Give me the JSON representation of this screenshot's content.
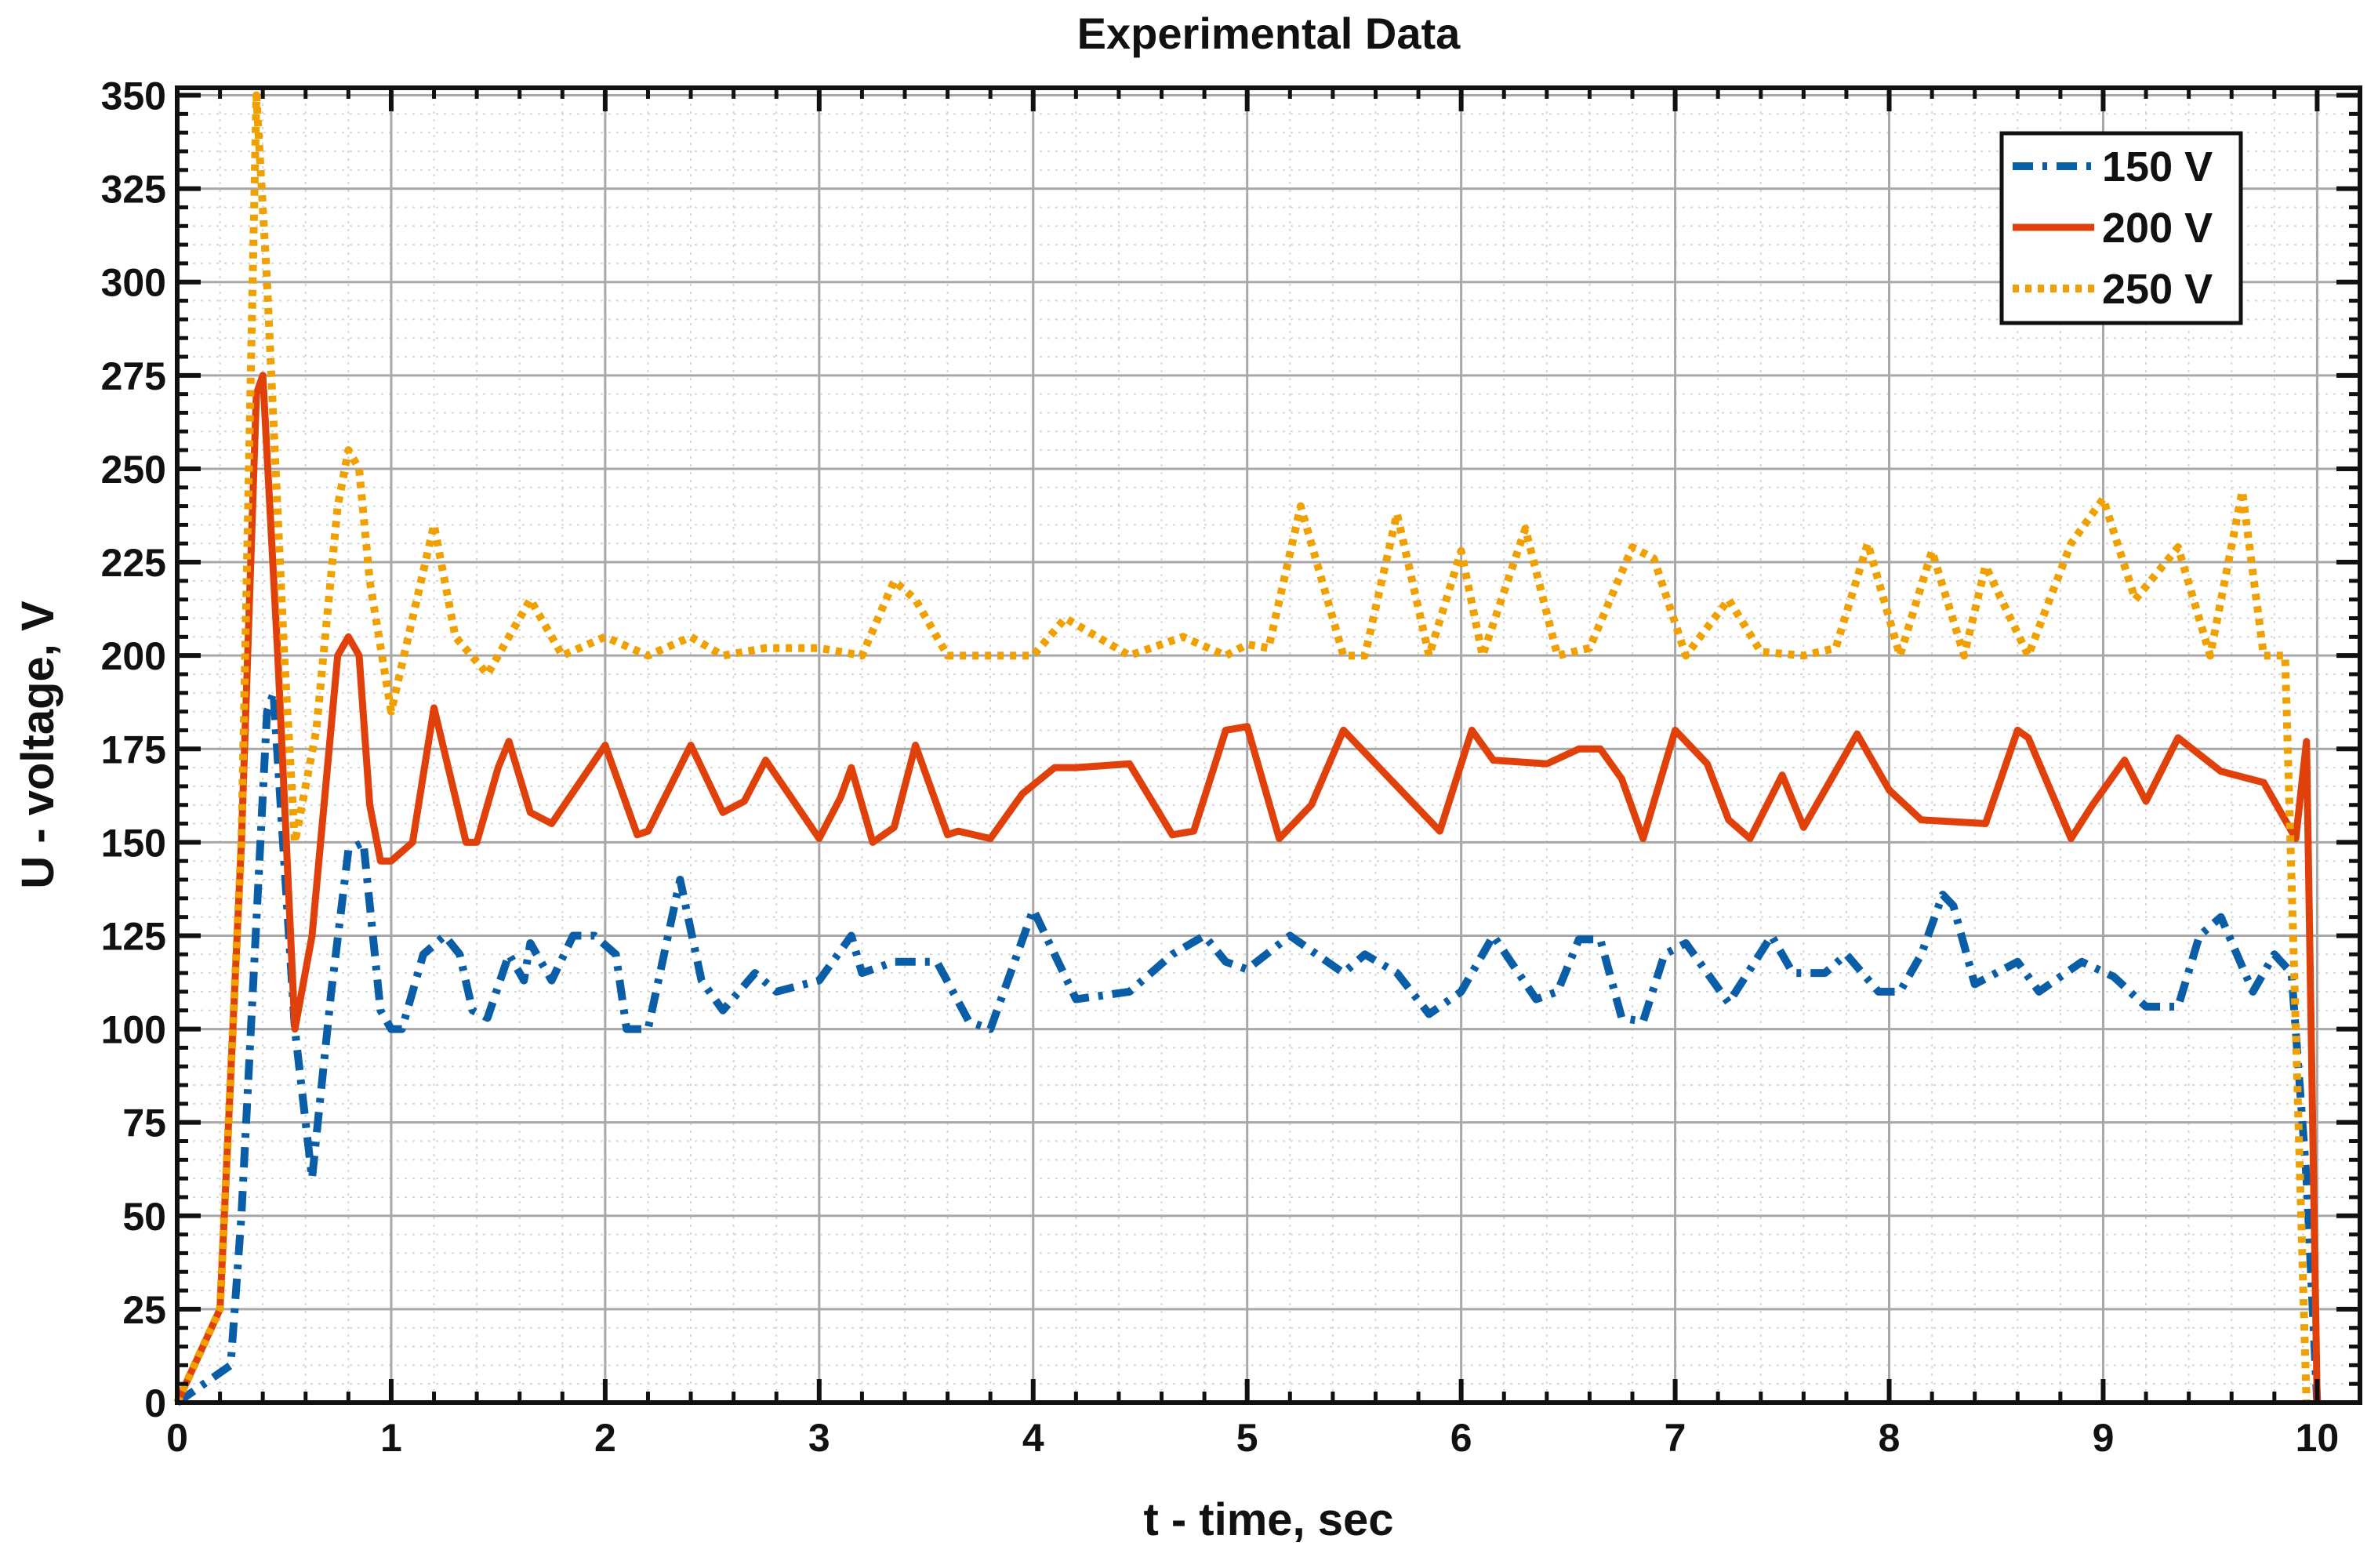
{
  "chart_data": {
    "type": "line",
    "title": "Experimental Data",
    "xlabel": "t - time, sec",
    "ylabel": "U - voltage, V",
    "xlim": [
      0,
      10.2
    ],
    "ylim": [
      0,
      352
    ],
    "xticks": [
      0,
      1,
      2,
      3,
      4,
      5,
      6,
      7,
      8,
      9,
      10
    ],
    "xtick_labels": [
      "0",
      "1",
      "2",
      "3",
      "4",
      "5",
      "6",
      "7",
      "8",
      "9",
      "10"
    ],
    "yticks": [
      0,
      25,
      50,
      75,
      100,
      125,
      150,
      175,
      200,
      225,
      250,
      275,
      300,
      325,
      350
    ],
    "ytick_labels": [
      "0",
      "25",
      "50",
      "75",
      "100",
      "125",
      "150",
      "175",
      "200",
      "225",
      "250",
      "275",
      "300",
      "325",
      "350"
    ],
    "grid": true,
    "minor_grid": true,
    "legend_position": "top-right",
    "series": [
      {
        "name": "150 V",
        "color": "#0a5ea8",
        "style": "dashdot",
        "x": [
          0,
          0.25,
          0.3,
          0.42,
          0.45,
          0.55,
          0.63,
          0.72,
          0.8,
          0.87,
          0.95,
          1.0,
          1.05,
          1.15,
          1.25,
          1.32,
          1.38,
          1.45,
          1.55,
          1.62,
          1.65,
          1.75,
          1.85,
          1.95,
          2.05,
          2.1,
          2.2,
          2.35,
          2.45,
          2.55,
          2.7,
          2.8,
          3.0,
          3.15,
          3.2,
          3.35,
          3.55,
          3.7,
          3.8,
          4.0,
          4.1,
          4.2,
          4.45,
          4.65,
          4.8,
          4.9,
          5.0,
          5.2,
          5.45,
          5.55,
          5.7,
          5.85,
          6.0,
          6.15,
          6.35,
          6.45,
          6.55,
          6.65,
          6.75,
          6.85,
          6.95,
          7.05,
          7.25,
          7.45,
          7.55,
          7.7,
          7.8,
          7.95,
          8.05,
          8.15,
          8.25,
          8.3,
          8.4,
          8.6,
          8.7,
          8.9,
          9.05,
          9.2,
          9.35,
          9.45,
          9.55,
          9.7,
          9.8,
          9.88,
          9.95,
          10.0
        ],
        "y": [
          0,
          10,
          50,
          185,
          190,
          100,
          60,
          110,
          148,
          150,
          105,
          100,
          100,
          120,
          125,
          120,
          105,
          103,
          120,
          113,
          123,
          113,
          125,
          125,
          120,
          100,
          100,
          140,
          113,
          105,
          115,
          110,
          113,
          125,
          115,
          118,
          118,
          102,
          100,
          132,
          120,
          108,
          110,
          120,
          125,
          118,
          116,
          125,
          115,
          120,
          115,
          104,
          110,
          125,
          108,
          110,
          124,
          124,
          103,
          102,
          120,
          123,
          107,
          125,
          115,
          115,
          120,
          110,
          110,
          120,
          136,
          133,
          112,
          118,
          110,
          118,
          114,
          106,
          106,
          125,
          130,
          110,
          120,
          115,
          60,
          0
        ]
      },
      {
        "name": "200 V",
        "color": "#e0400a",
        "style": "solid",
        "x": [
          0,
          0.2,
          0.3,
          0.37,
          0.4,
          0.47,
          0.55,
          0.63,
          0.75,
          0.8,
          0.85,
          0.9,
          0.95,
          1.0,
          1.1,
          1.2,
          1.35,
          1.4,
          1.5,
          1.55,
          1.65,
          1.75,
          2.0,
          2.15,
          2.2,
          2.4,
          2.55,
          2.65,
          2.75,
          3.0,
          3.1,
          3.15,
          3.25,
          3.35,
          3.45,
          3.6,
          3.65,
          3.8,
          3.95,
          4.1,
          4.2,
          4.45,
          4.65,
          4.75,
          4.9,
          5.0,
          5.15,
          5.3,
          5.45,
          5.7,
          5.9,
          6.05,
          6.15,
          6.4,
          6.55,
          6.65,
          6.75,
          6.85,
          7.0,
          7.15,
          7.25,
          7.35,
          7.5,
          7.6,
          7.85,
          8.0,
          8.15,
          8.45,
          8.6,
          8.65,
          8.85,
          8.95,
          9.1,
          9.2,
          9.35,
          9.55,
          9.75,
          9.9,
          9.95,
          10.0
        ],
        "y": [
          0,
          25,
          150,
          270,
          275,
          200,
          100,
          125,
          200,
          205,
          200,
          160,
          145,
          145,
          150,
          186,
          150,
          150,
          170,
          177,
          158,
          155,
          176,
          152,
          153,
          176,
          158,
          161,
          172,
          151,
          162,
          170,
          150,
          154,
          176,
          152,
          153,
          151,
          163,
          170,
          170,
          171,
          152,
          153,
          180,
          181,
          151,
          160,
          180,
          165,
          153,
          180,
          172,
          171,
          175,
          175,
          167,
          151,
          180,
          171,
          156,
          151,
          168,
          154,
          179,
          164,
          156,
          155,
          180,
          178,
          151,
          160,
          172,
          161,
          178,
          169,
          166,
          151,
          177,
          0
        ]
      },
      {
        "name": "250 V",
        "color": "#f0a000",
        "style": "dotted",
        "x": [
          0,
          0.2,
          0.3,
          0.37,
          0.42,
          0.5,
          0.55,
          0.65,
          0.75,
          0.8,
          0.85,
          0.9,
          1.0,
          1.1,
          1.2,
          1.3,
          1.45,
          1.55,
          1.65,
          1.8,
          2.0,
          2.2,
          2.4,
          2.55,
          2.75,
          3.0,
          3.2,
          3.35,
          3.45,
          3.6,
          4.0,
          4.15,
          4.3,
          4.45,
          4.7,
          4.9,
          5.0,
          5.1,
          5.25,
          5.35,
          5.45,
          5.55,
          5.7,
          5.85,
          6.0,
          6.1,
          6.3,
          6.45,
          6.6,
          6.8,
          6.9,
          7.05,
          7.25,
          7.4,
          7.6,
          7.75,
          7.9,
          8.05,
          8.2,
          8.35,
          8.45,
          8.65,
          8.85,
          9.0,
          9.15,
          9.35,
          9.5,
          9.65,
          9.75,
          9.85,
          9.95
        ],
        "y": [
          0,
          25,
          150,
          350,
          300,
          200,
          150,
          180,
          240,
          255,
          250,
          220,
          185,
          210,
          235,
          205,
          195,
          205,
          215,
          200,
          205,
          200,
          205,
          200,
          202,
          202,
          200,
          220,
          215,
          200,
          200,
          210,
          205,
          200,
          205,
          200,
          203,
          202,
          240,
          220,
          200,
          200,
          238,
          200,
          228,
          200,
          234,
          200,
          202,
          229,
          226,
          200,
          215,
          201,
          200,
          202,
          230,
          200,
          228,
          200,
          224,
          200,
          230,
          242,
          215,
          229,
          200,
          244,
          200,
          200,
          0
        ]
      }
    ]
  }
}
